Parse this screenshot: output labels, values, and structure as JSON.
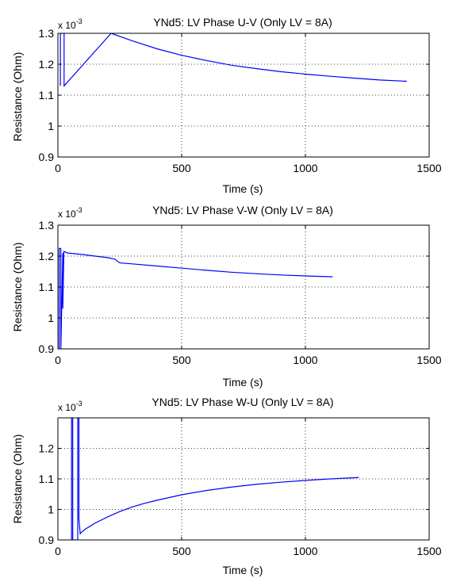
{
  "chart_data": [
    {
      "type": "line",
      "title": "YNd5: LV Phase U-V (Only LV = 8A)",
      "xlabel": "Time (s)",
      "ylabel": "Resistance (Ohm)",
      "y_multiplier": "x 10",
      "y_multiplier_exp": "-3",
      "xlim": [
        0,
        1500
      ],
      "ylim": [
        0.9,
        1.3
      ],
      "xticks": [
        0,
        500,
        1000,
        1500
      ],
      "yticks": [
        0.9,
        1,
        1.1,
        1.2,
        1.3
      ],
      "ytick_labels": [
        "0.9",
        "1",
        "1.1",
        "1.2",
        "1.3"
      ],
      "grid": true,
      "line_color": "#0000ff",
      "series": [
        {
          "x": [
            10,
            10,
            25,
            25,
            215,
            300,
            400,
            500,
            600,
            700,
            800,
            900,
            1000,
            1100,
            1200,
            1300,
            1410
          ],
          "y": [
            1.13,
            1.3,
            1.3,
            1.13,
            1.3,
            1.276,
            1.25,
            1.229,
            1.212,
            1.197,
            1.186,
            1.176,
            1.168,
            1.161,
            1.155,
            1.149,
            1.145
          ]
        }
      ]
    },
    {
      "type": "line",
      "title": "YNd5: LV Phase V-W (Only LV = 8A)",
      "xlabel": "Time (s)",
      "ylabel": "Resistance (Ohm)",
      "y_multiplier": "x 10",
      "y_multiplier_exp": "-3",
      "xlim": [
        0,
        1500
      ],
      "ylim": [
        0.9,
        1.3
      ],
      "xticks": [
        0,
        500,
        1000,
        1500
      ],
      "yticks": [
        0.9,
        1,
        1.1,
        1.2,
        1.3
      ],
      "ytick_labels": [
        "0.9",
        "1",
        "1.1",
        "1.2",
        "1.3"
      ],
      "grid": true,
      "line_color": "#0000ff",
      "series": [
        {
          "x": [
            5,
            5,
            12,
            12,
            20,
            20,
            24,
            40,
            100,
            150,
            200,
            230,
            250,
            300,
            400,
            500,
            600,
            700,
            800,
            900,
            1000,
            1110
          ],
          "y": [
            0.9,
            1.225,
            1.225,
            0.9,
            1.21,
            1.03,
            1.215,
            1.21,
            1.205,
            1.2,
            1.195,
            1.19,
            1.178,
            1.175,
            1.168,
            1.161,
            1.154,
            1.148,
            1.143,
            1.139,
            1.136,
            1.133
          ]
        }
      ]
    },
    {
      "type": "line",
      "title": "YNd5: LV Phase W-U (Only LV = 8A)",
      "xlabel": "Time (s)",
      "ylabel": "Resistance (Ohm)",
      "y_multiplier": "x 10",
      "y_multiplier_exp": "-3",
      "xlim": [
        0,
        1500
      ],
      "ylim": [
        0.9,
        1.3
      ],
      "xticks": [
        0,
        500,
        1000,
        1500
      ],
      "yticks": [
        0.9,
        1,
        1.1,
        1.2
      ],
      "ytick_labels": [
        "0.9",
        "1",
        "1.1",
        "1.2"
      ],
      "grid": true,
      "line_color": "#0000ff",
      "series": [
        {
          "x": [
            55,
            55,
            60,
            60,
            80,
            80,
            85,
            85,
            90,
            95,
            110,
            130,
            150,
            200,
            250,
            300,
            350,
            400,
            500,
            600,
            700,
            800,
            900,
            1000,
            1100,
            1200,
            1215
          ],
          "y": [
            0.9,
            1.3,
            1.3,
            0.9,
            0.9,
            1.3,
            1.3,
            0.97,
            0.92,
            0.925,
            0.935,
            0.945,
            0.955,
            0.975,
            0.993,
            1.008,
            1.02,
            1.03,
            1.048,
            1.062,
            1.073,
            1.082,
            1.089,
            1.095,
            1.1,
            1.104,
            1.105
          ]
        }
      ]
    }
  ]
}
